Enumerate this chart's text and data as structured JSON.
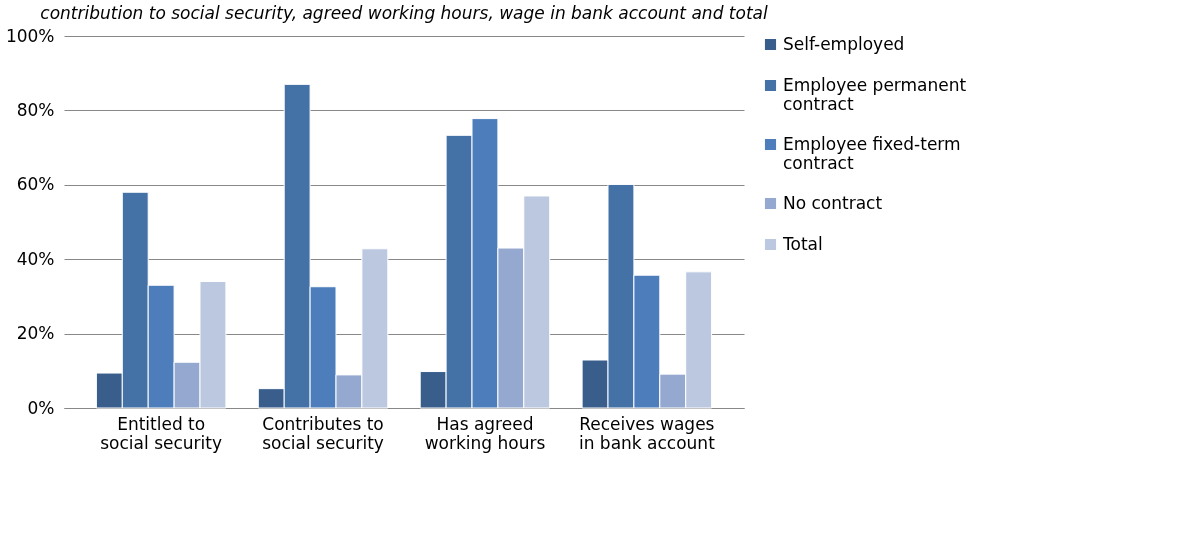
{
  "chart_data": {
    "type": "bar",
    "title": "contribution to social security, agreed working hours, wage in bank account and total",
    "categories": [
      "Entitled to social security",
      "Contributes to social security",
      "Has agreed working hours",
      "Receives wages in bank account"
    ],
    "series": [
      {
        "name": "Self-employed",
        "color": "#3a5e8c",
        "values": [
          9.4,
          5.2,
          9.8,
          12.9
        ]
      },
      {
        "name": "Employee permanent contract",
        "color": "#4471a6",
        "values": [
          58,
          87,
          73.3,
          60.1
        ]
      },
      {
        "name": "Employee fixed-term contract",
        "color": "#4d7ebb",
        "values": [
          33,
          32.6,
          77.8,
          35.7
        ]
      },
      {
        "name": "No contract",
        "color": "#95a9d0",
        "values": [
          12.3,
          8.9,
          43,
          9.1
        ]
      },
      {
        "name": "Total",
        "color": "#bbc8e0",
        "values": [
          34,
          42.8,
          57,
          36.6
        ]
      }
    ],
    "ylim": [
      0,
      100
    ],
    "yticks": [
      {
        "value": 0,
        "label": "0%"
      },
      {
        "value": 20,
        "label": "20%"
      },
      {
        "value": 40,
        "label": "40%"
      },
      {
        "value": 60,
        "label": "60%"
      },
      {
        "value": 80,
        "label": "80%"
      },
      {
        "value": 100,
        "label": "100%"
      }
    ],
    "grid": "y",
    "legend": "right"
  }
}
